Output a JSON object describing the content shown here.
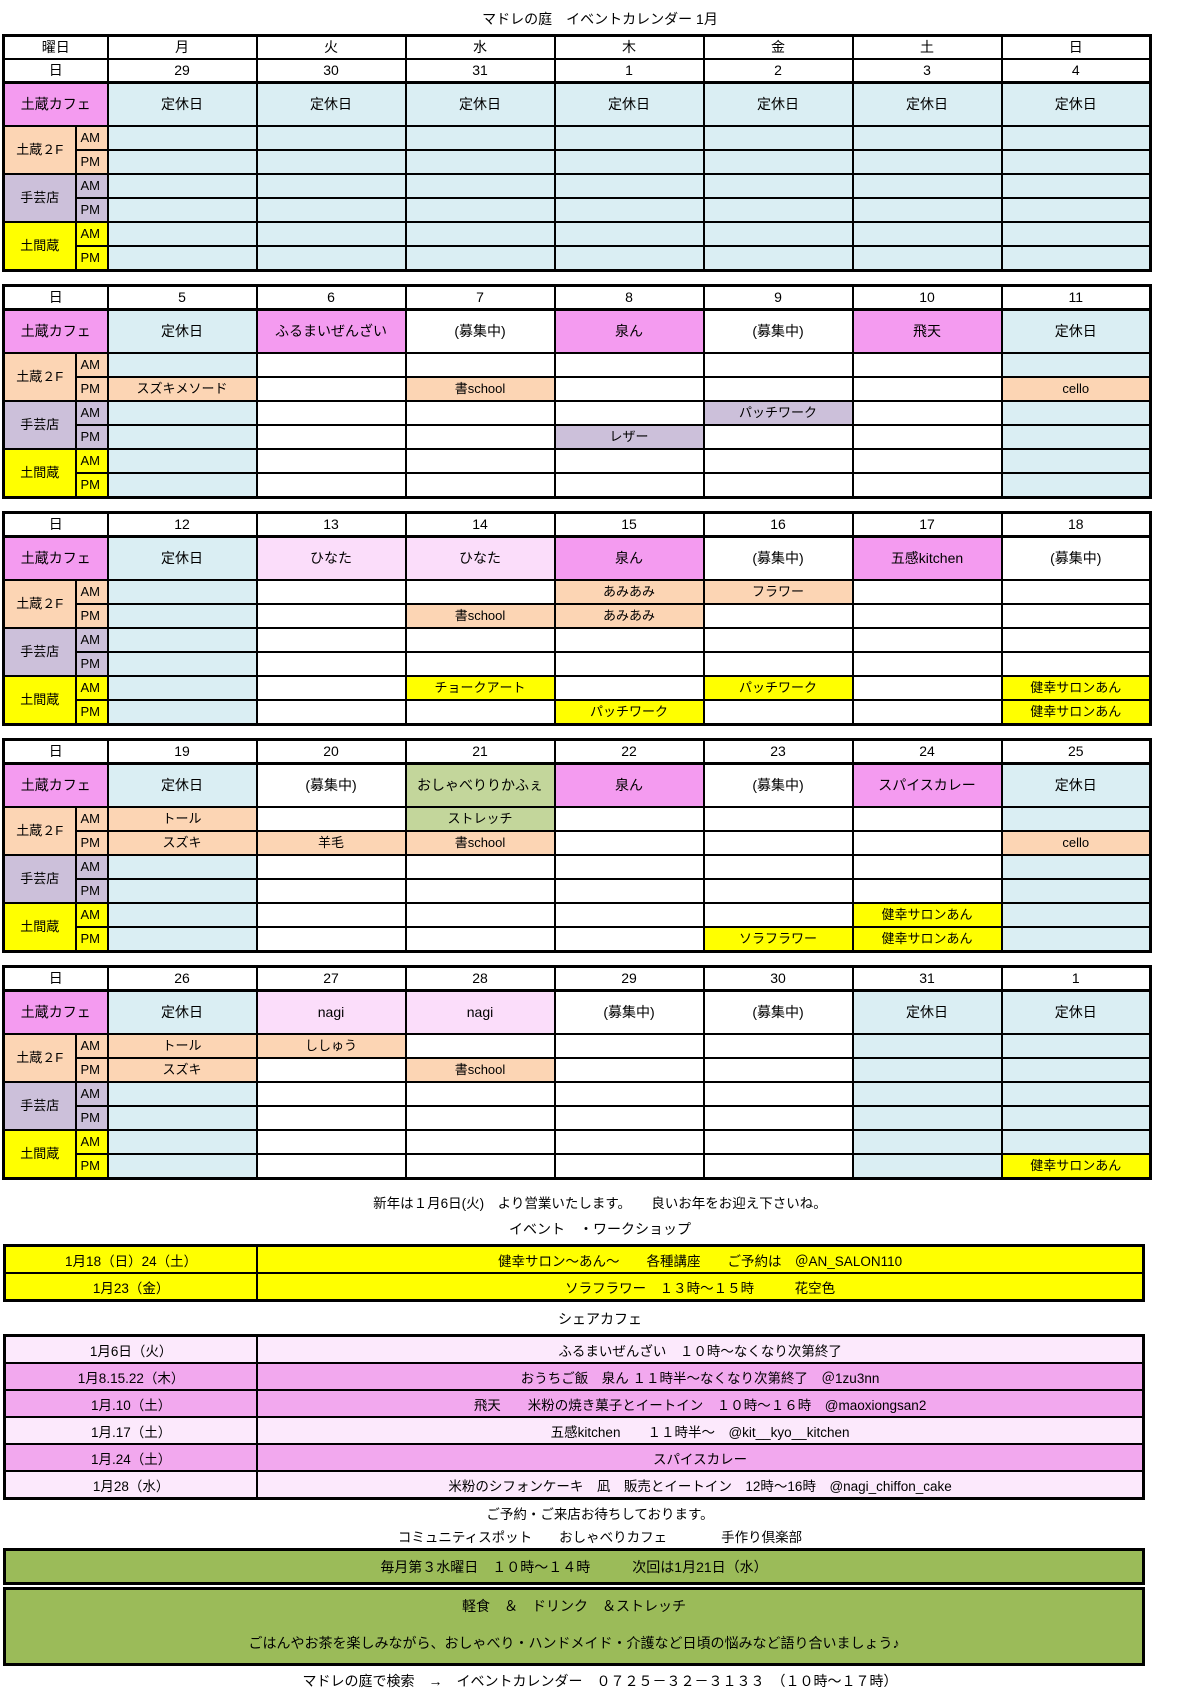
{
  "title": "マドレの庭　イベントカレンダー 1月",
  "labels": {
    "weekday_header": "曜日",
    "date_header": "日",
    "weekdays": [
      "月",
      "火",
      "水",
      "木",
      "金",
      "土",
      "日"
    ],
    "venues": {
      "cafe": "土蔵カフェ",
      "kura2f": "土蔵２F",
      "shugei": "手芸店",
      "doma": "土間蔵"
    },
    "am": "AM",
    "pm": "PM"
  },
  "colors": {
    "pink": "#F49BF0",
    "lightpink": "#FBDDFA",
    "peach": "#FCD5B4",
    "purple": "#CCC0DA",
    "yellow": "#FFFF00",
    "blue": "#DAEEF3",
    "green": "#C3D69B",
    "olive": "#9BBB59",
    "share_light": "#FCE9FC",
    "share_medium": "#F2A8EE",
    "white": "#FFFFFF"
  },
  "weeks": [
    {
      "dates": [
        "29",
        "30",
        "31",
        "1",
        "2",
        "3",
        "4"
      ],
      "closed": [
        0,
        1,
        2,
        3,
        4,
        5,
        6
      ],
      "cafe": [
        [
          "定休日",
          "blue"
        ],
        [
          "定休日",
          "blue"
        ],
        [
          "定休日",
          "blue"
        ],
        [
          "定休日",
          "blue"
        ],
        [
          "定休日",
          "blue"
        ],
        [
          "定休日",
          "blue"
        ],
        [
          "定休日",
          "blue"
        ]
      ],
      "k2am": [
        null,
        null,
        null,
        null,
        null,
        null,
        null
      ],
      "k2pm": [
        null,
        null,
        null,
        null,
        null,
        null,
        null
      ],
      "sham": [
        null,
        null,
        null,
        null,
        null,
        null,
        null
      ],
      "shpm": [
        null,
        null,
        null,
        null,
        null,
        null,
        null
      ],
      "dmam": [
        null,
        null,
        null,
        null,
        null,
        null,
        null
      ],
      "dmpm": [
        null,
        null,
        null,
        null,
        null,
        null,
        null
      ]
    },
    {
      "dates": [
        "5",
        "6",
        "7",
        "8",
        "9",
        "10",
        "11"
      ],
      "closed": [
        0,
        6
      ],
      "cafe": [
        [
          "定休日",
          "blue"
        ],
        [
          "ふるまいぜんざい",
          "pink"
        ],
        [
          "(募集中)",
          "white"
        ],
        [
          "泉ん",
          "pink"
        ],
        [
          "(募集中)",
          "white"
        ],
        [
          "飛天",
          "pink"
        ],
        [
          "定休日",
          "blue"
        ]
      ],
      "k2am": [
        null,
        null,
        null,
        null,
        null,
        null,
        null
      ],
      "k2pm": [
        [
          "スズキメソード",
          "peach"
        ],
        null,
        [
          "書school",
          "peach"
        ],
        null,
        null,
        null,
        [
          "cello",
          "peach"
        ]
      ],
      "sham": [
        null,
        null,
        null,
        null,
        [
          "パッチワーク",
          "purple"
        ],
        null,
        null
      ],
      "shpm": [
        null,
        null,
        null,
        [
          "レザー",
          "purple"
        ],
        null,
        null,
        null
      ],
      "dmam": [
        null,
        null,
        null,
        null,
        null,
        null,
        null
      ],
      "dmpm": [
        null,
        null,
        null,
        null,
        null,
        null,
        null
      ]
    },
    {
      "dates": [
        "12",
        "13",
        "14",
        "15",
        "16",
        "17",
        "18"
      ],
      "closed": [
        0
      ],
      "cafe": [
        [
          "定休日",
          "blue"
        ],
        [
          "ひなた",
          "lightpink"
        ],
        [
          "ひなた",
          "lightpink"
        ],
        [
          "泉ん",
          "pink"
        ],
        [
          "(募集中)",
          "white"
        ],
        [
          "五感kitchen",
          "pink"
        ],
        [
          "(募集中)",
          "white"
        ]
      ],
      "k2am": [
        null,
        null,
        null,
        [
          "あみあみ",
          "peach"
        ],
        [
          "フラワー",
          "peach"
        ],
        null,
        null
      ],
      "k2pm": [
        null,
        null,
        [
          "書school",
          "peach"
        ],
        [
          "あみあみ",
          "peach"
        ],
        null,
        null,
        null
      ],
      "sham": [
        null,
        null,
        null,
        null,
        null,
        null,
        null
      ],
      "shpm": [
        null,
        null,
        null,
        null,
        null,
        null,
        null
      ],
      "dmam": [
        null,
        null,
        [
          "チョークアート",
          "yellow"
        ],
        null,
        [
          "パッチワーク",
          "yellow"
        ],
        null,
        [
          "健幸サロンあん",
          "yellow"
        ]
      ],
      "dmpm": [
        null,
        null,
        null,
        [
          "パッチワーク",
          "yellow"
        ],
        null,
        null,
        [
          "健幸サロンあん",
          "yellow"
        ]
      ]
    },
    {
      "dates": [
        "19",
        "20",
        "21",
        "22",
        "23",
        "24",
        "25"
      ],
      "closed": [
        0,
        6
      ],
      "cafe": [
        [
          "定休日",
          "blue"
        ],
        [
          "(募集中)",
          "white"
        ],
        [
          "おしゃべりりかふぇ",
          "green"
        ],
        [
          "泉ん",
          "pink"
        ],
        [
          "(募集中)",
          "white"
        ],
        [
          "スパイスカレー",
          "pink"
        ],
        [
          "定休日",
          "blue"
        ]
      ],
      "k2am": [
        [
          "トール",
          "peach"
        ],
        null,
        [
          "ストレッチ",
          "green"
        ],
        null,
        null,
        null,
        null
      ],
      "k2pm": [
        [
          "スズキ",
          "peach"
        ],
        [
          "羊毛",
          "peach"
        ],
        [
          "書school",
          "peach"
        ],
        null,
        null,
        null,
        [
          "cello",
          "peach"
        ]
      ],
      "sham": [
        null,
        null,
        null,
        null,
        null,
        null,
        null
      ],
      "shpm": [
        null,
        null,
        null,
        null,
        null,
        null,
        null
      ],
      "dmam": [
        null,
        null,
        null,
        null,
        null,
        [
          "健幸サロンあん",
          "yellow"
        ],
        null
      ],
      "dmpm": [
        null,
        null,
        null,
        null,
        [
          "ソラフラワー",
          "yellow"
        ],
        [
          "健幸サロンあん",
          "yellow"
        ],
        null
      ]
    },
    {
      "dates": [
        "26",
        "27",
        "28",
        "29",
        "30",
        "31",
        "1"
      ],
      "closed": [
        0,
        5,
        6
      ],
      "cafe": [
        [
          "定休日",
          "blue"
        ],
        [
          "nagi",
          "lightpink"
        ],
        [
          "nagi",
          "lightpink"
        ],
        [
          "(募集中)",
          "white"
        ],
        [
          "(募集中)",
          "white"
        ],
        [
          "定休日",
          "blue"
        ],
        [
          "定休日",
          "blue"
        ]
      ],
      "k2am": [
        [
          "トール",
          "peach"
        ],
        [
          "ししゅう",
          "peach"
        ],
        null,
        null,
        null,
        null,
        null
      ],
      "k2pm": [
        [
          "スズキ",
          "peach"
        ],
        null,
        [
          "書school",
          "peach"
        ],
        null,
        null,
        null,
        null
      ],
      "sham": [
        null,
        null,
        null,
        null,
        null,
        null,
        null
      ],
      "shpm": [
        null,
        null,
        null,
        null,
        null,
        null,
        null
      ],
      "dmam": [
        null,
        null,
        null,
        null,
        null,
        null,
        null
      ],
      "dmpm": [
        null,
        null,
        null,
        null,
        null,
        null,
        [
          "健幸サロンあん",
          "yellow"
        ]
      ]
    }
  ],
  "notes": {
    "newyear": "新年は１月6日(火)　より営業いたします。　　良いお年をお迎え下さいね。",
    "reservation": "ご予約・ご来店お待ちしております。",
    "community": "コミュニティスポット　　おしゃべりカフェ　　　　手作り倶楽部"
  },
  "events_section": {
    "heading": "イベント　・ワークショップ",
    "rows": [
      {
        "date": "1月18（日）24（土）",
        "desc": "健幸サロン～あん～　　各種講座　　ご予約は　＠AN_SALON110"
      },
      {
        "date": "1月23（金）",
        "desc": "ソラフラワー　１３時～１５時　　　花空色"
      }
    ]
  },
  "share_cafe": {
    "heading": "シェアカフェ",
    "rows": [
      {
        "date": "1月6日（火）",
        "desc": "ふるまいぜんざい　１０時～なくなり次第終了",
        "shade": "share_light"
      },
      {
        "date": "1月8.15.22（木）",
        "desc": "おうちご飯　泉ん １１時半～なくなり次第終了　＠1zu3nn",
        "shade": "share_medium"
      },
      {
        "date": "1月.10（土）",
        "desc": "飛天　　米粉の焼き菓子とイートイン　１０時～１６時　@maoxiongsan2",
        "shade": "share_medium"
      },
      {
        "date": "1月.17（土）",
        "desc": "五感kitchen　　１１時半～　@kit__kyo__kitchen",
        "shade": "share_light"
      },
      {
        "date": "1月.24（土）",
        "desc": "スパイスカレー",
        "shade": "share_medium"
      },
      {
        "date": "1月28（水）",
        "desc": "米粉のシフォンケーキ　凪　販売とイートイン　12時～16時　@nagi_chiffon_cake",
        "shade": "share_light"
      }
    ]
  },
  "community_spot": {
    "bar1": "毎月第３水曜日　１０時～１４時　　　次回は1月21日（水）",
    "bar2_line1": "軽食　＆　ドリンク　＆ストレッチ",
    "bar2_line2": "ごはんやお茶を楽しみながら、おしゃべり・ハンドメイド・介護など日頃の悩みなど語り合いましょう♪"
  },
  "footer": "マドレの庭で検索　→　イベントカレンダー　０７２５－３２－３１３３　（１０時～１７時）"
}
